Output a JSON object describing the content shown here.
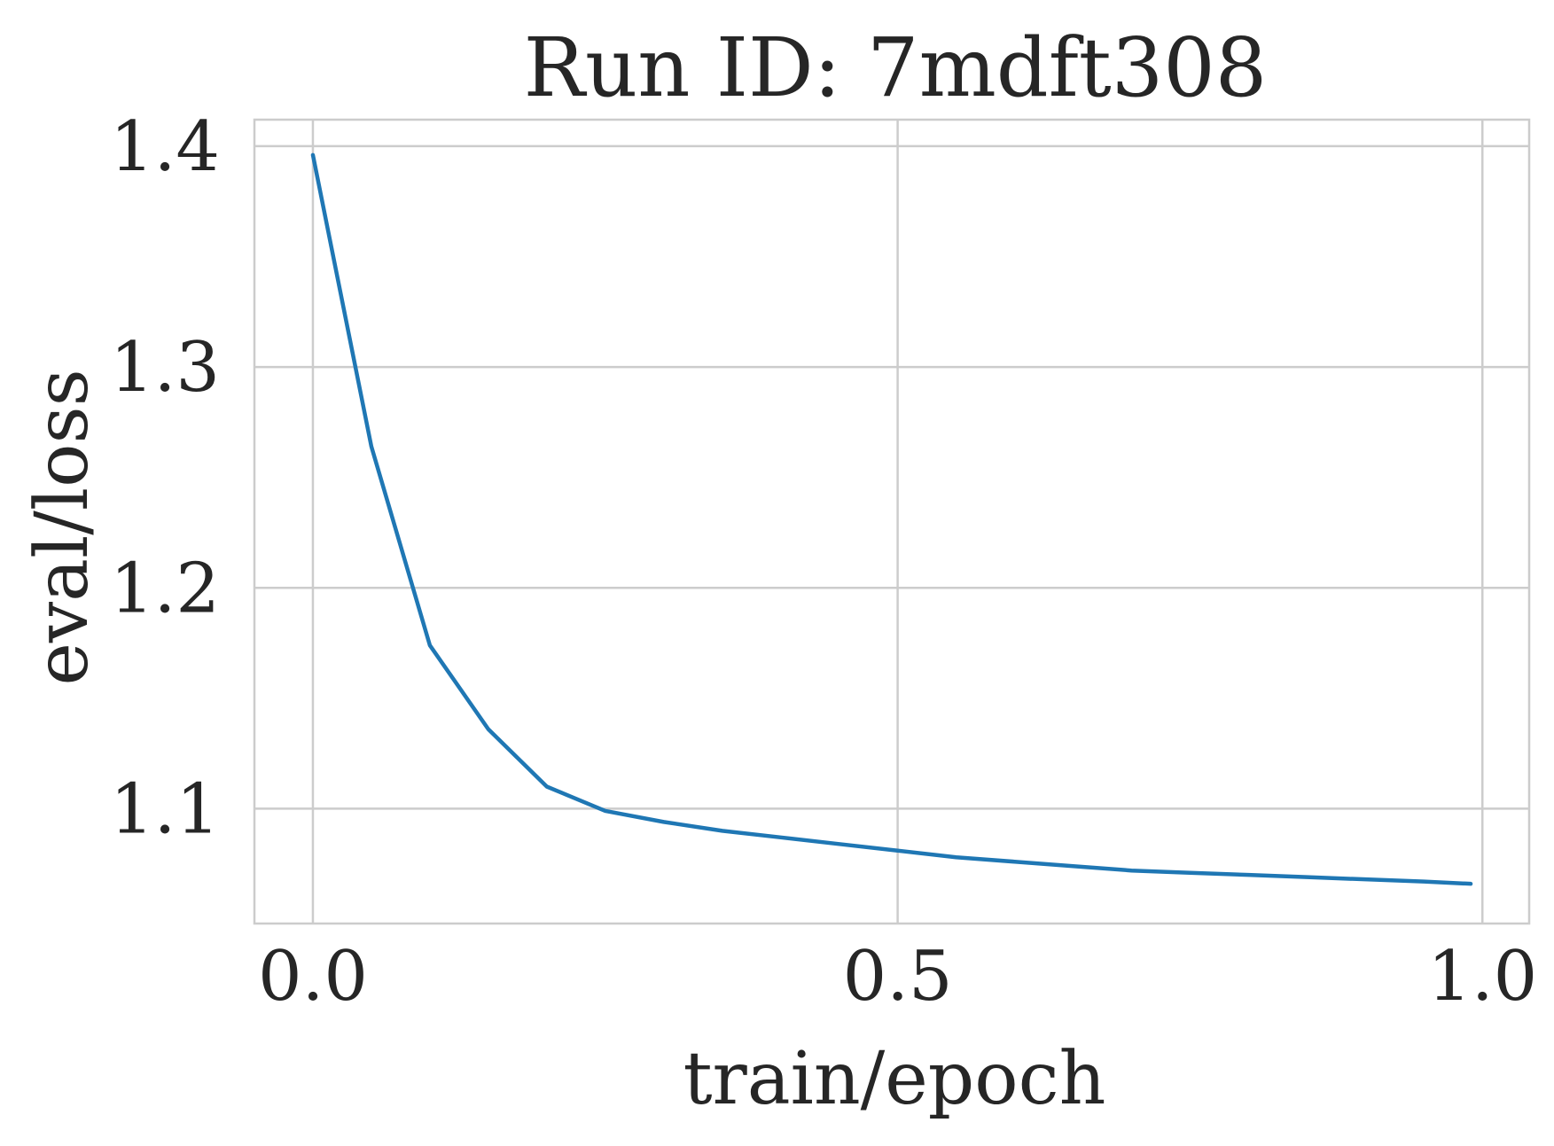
{
  "chart_data": {
    "type": "line",
    "title": "Run ID: 7mdft308",
    "xlabel": "train/epoch",
    "ylabel": "eval/loss",
    "xlim": [
      -0.05,
      1.04
    ],
    "ylim": [
      1.048,
      1.412
    ],
    "grid": true,
    "x_ticks": [
      {
        "value": 0.0,
        "label": "0.0"
      },
      {
        "value": 0.5,
        "label": "0.5"
      },
      {
        "value": 1.0,
        "label": "1.0"
      }
    ],
    "y_ticks": [
      {
        "value": 1.1,
        "label": "1.1"
      },
      {
        "value": 1.2,
        "label": "1.2"
      },
      {
        "value": 1.3,
        "label": "1.3"
      },
      {
        "value": 1.4,
        "label": "1.4"
      }
    ],
    "series": [
      {
        "name": "eval/loss",
        "color": "#1f77b4",
        "x": [
          0.0,
          0.05,
          0.1,
          0.15,
          0.2,
          0.25,
          0.3,
          0.35,
          0.4,
          0.45,
          0.5,
          0.55,
          0.6,
          0.65,
          0.7,
          0.75,
          0.8,
          0.85,
          0.9,
          0.95,
          0.99
        ],
        "y": [
          1.396,
          1.264,
          1.174,
          1.136,
          1.11,
          1.099,
          1.094,
          1.09,
          1.087,
          1.084,
          1.081,
          1.078,
          1.076,
          1.074,
          1.072,
          1.071,
          1.07,
          1.069,
          1.068,
          1.067,
          1.066
        ]
      }
    ]
  }
}
